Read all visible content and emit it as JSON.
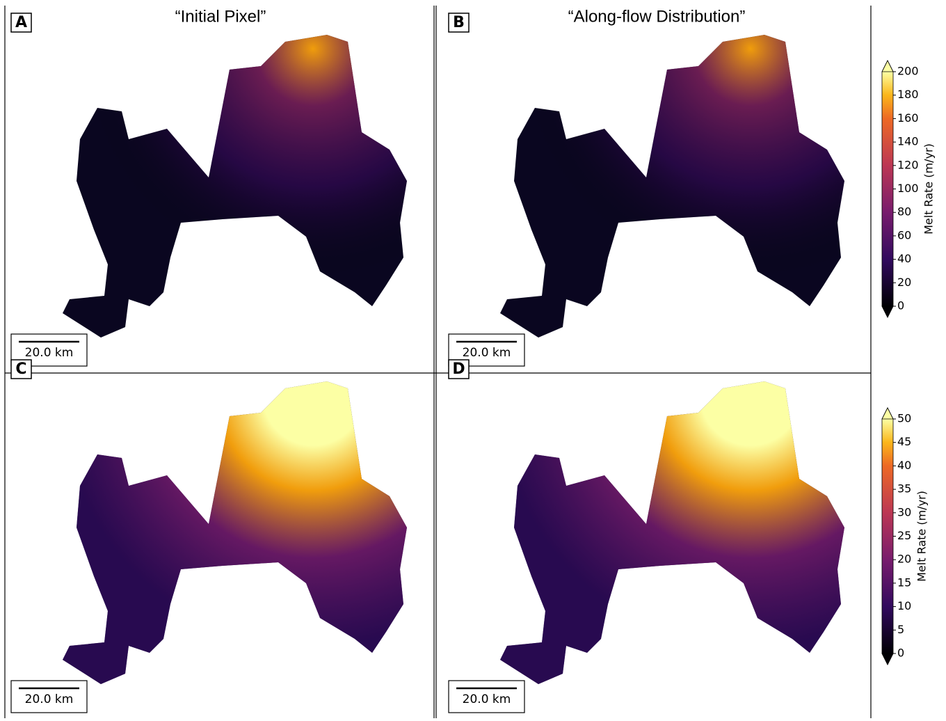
{
  "panels": [
    {
      "letter": "A",
      "title": "“Initial Pixel”",
      "scale_bar": "20.0 km"
    },
    {
      "letter": "B",
      "title": "“Along-flow Distribution”",
      "scale_bar": "20.0 km"
    },
    {
      "letter": "C",
      "scale_bar": "20.0 km"
    },
    {
      "letter": "D",
      "scale_bar": "20.0 km"
    }
  ],
  "colorbars": [
    {
      "label": "Melt Rate (m/yr)",
      "lim": [
        0,
        200
      ],
      "ticks": [
        0,
        20,
        40,
        60,
        80,
        100,
        120,
        140,
        160,
        180,
        200
      ]
    },
    {
      "label": "Melt Rate (m/yr)",
      "lim": [
        0,
        50
      ],
      "ticks": [
        0,
        5,
        10,
        15,
        20,
        25,
        30,
        35,
        40,
        45,
        50
      ]
    }
  ]
}
